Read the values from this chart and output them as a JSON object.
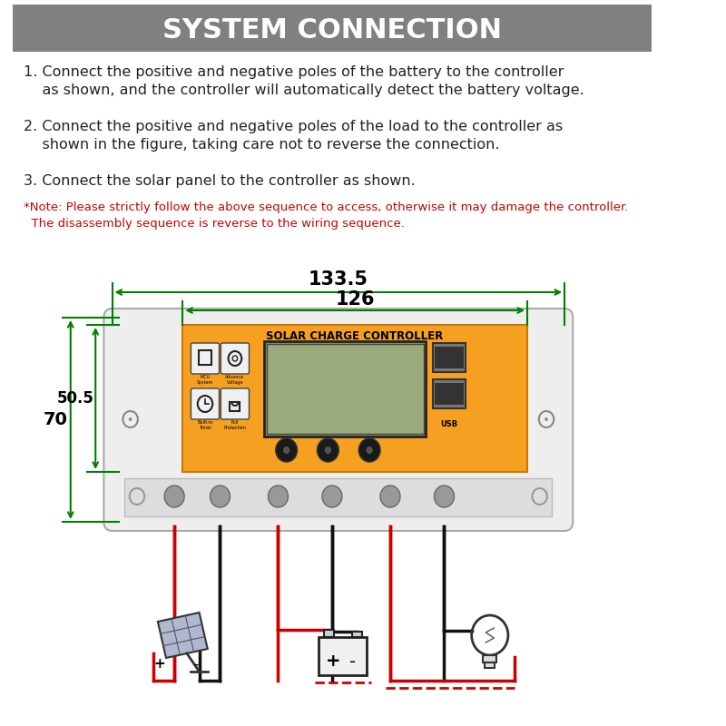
{
  "title": "SYSTEM CONNECTION",
  "title_bg": "#808080",
  "title_color": "#ffffff",
  "step1_a": "1. Connect the positive and negative poles of the battery to the controller",
  "step1_b": "    as shown, and the controller will automatically detect the battery voltage.",
  "step2_a": "2. Connect the positive and negative poles of the load to the controller as",
  "step2_b": "    shown in the figure, taking care not to reverse the connection.",
  "step3": "3. Connect the solar panel to the controller as shown.",
  "note_a": "*Note: Please strictly follow the above sequence to access, otherwise it may damage the controller.",
  "note_b": "  The disassembly sequence is reverse to the wiring sequence.",
  "note_color": "#cc0000",
  "dim1": "133.5",
  "dim2": "126",
  "dim3": "70",
  "dim4": "50.5",
  "dim_color": "#008000",
  "controller_orange": "#f5a020",
  "wire_red": "#cc0000",
  "wire_black": "#111111",
  "text_color": "#222222"
}
